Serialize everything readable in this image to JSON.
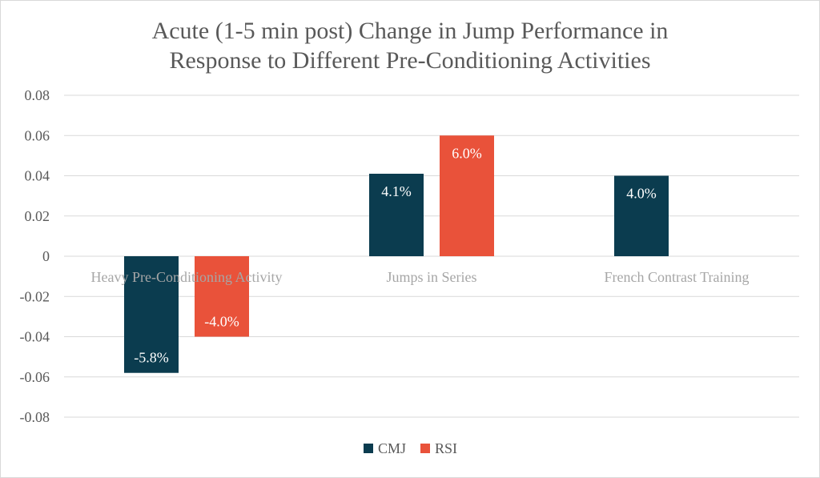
{
  "chart_data": {
    "type": "bar",
    "title": "Acute (1-5 min post) Change in Jump Performance in Response to Different Pre-Conditioning Activities",
    "title_lines": [
      "Acute (1-5 min post) Change in Jump Performance in",
      "Response to Different Pre-Conditioning Activities"
    ],
    "categories": [
      "Heavy Pre-Conditioning Activity",
      "Jumps in Series",
      "French Contrast Training"
    ],
    "series": [
      {
        "name": "CMJ",
        "color": "#0b3c4f",
        "values": [
          -0.058,
          0.041,
          0.04
        ],
        "labels": [
          "-5.8%",
          "4.1%",
          "4.0%"
        ]
      },
      {
        "name": "RSI",
        "color": "#e9523a",
        "values": [
          -0.04,
          0.06,
          null
        ],
        "labels": [
          "-4.0%",
          "6.0%",
          ""
        ]
      }
    ],
    "ylim": [
      -0.08,
      0.08
    ],
    "yticks": [
      0.08,
      0.06,
      0.04,
      0.02,
      0,
      -0.02,
      -0.04,
      -0.06,
      -0.08
    ],
    "ytick_labels": [
      "0.08",
      "0.06",
      "0.04",
      "0.02",
      "0",
      "-0.02",
      "-0.04",
      "-0.06",
      "-0.08"
    ],
    "grid": true,
    "legend": "bottom",
    "xlabel": "",
    "ylabel": ""
  }
}
